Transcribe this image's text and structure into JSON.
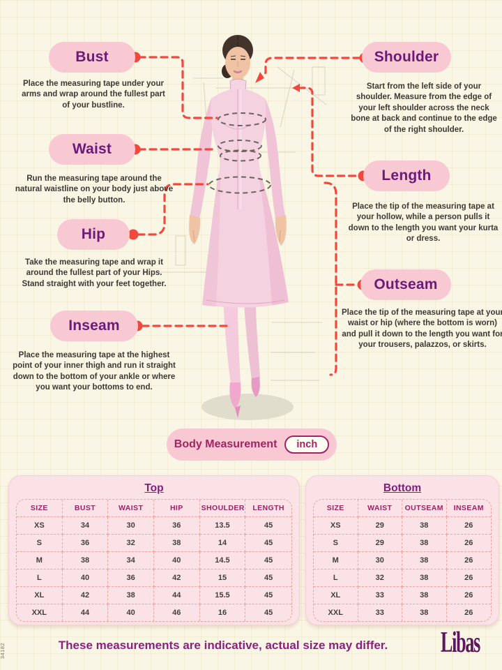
{
  "page": {
    "body_measurement_label": "Body Measurement",
    "unit_label": "inch",
    "footer_note": "These measurements are indicative, actual size may differ.",
    "brand": "Libas",
    "side_code": "34182"
  },
  "colors": {
    "background_cream": "#FAF6E5",
    "pill_pink": "#F8C8D3",
    "card_pink": "#FBE2E6",
    "connector_red": "#F2493E",
    "label_purple": "#6A1B7A",
    "magenta": "#A02463",
    "footer_magenta": "#8E1F82",
    "brand_purple": "#5C165D"
  },
  "callouts": [
    {
      "id": "bust",
      "label": "Bust",
      "description": "Place the measuring tape under your arms and wrap around the fullest part of your bustline."
    },
    {
      "id": "waist",
      "label": "Waist",
      "description": "Run the measuring tape around the natural waistline on your body just above the belly button."
    },
    {
      "id": "hip",
      "label": "Hip",
      "description": "Take the measuring tape and wrap it around the fullest part of your Hips. Stand straight with your feet together."
    },
    {
      "id": "inseam",
      "label": "Inseam",
      "description": "Place the measuring tape at the highest point of your inner thigh and run it straight down to the bottom of your ankle or where you want your bottoms to end."
    },
    {
      "id": "shoulder",
      "label": "Shoulder",
      "description": "Start from the left side of your shoulder. Measure from the edge of your left shoulder across the neck bone at back and continue to the edge of the right shoulder."
    },
    {
      "id": "length",
      "label": "Length",
      "description": "Place the tip of the measuring tape at your hollow, while a person pulls it down to the length you want your kurta or dress."
    },
    {
      "id": "outseam",
      "label": "Outseam",
      "description": "Place the tip of the measuring tape at your waist or hip (where the bottom is worn) and pull it down to the length you want for your trousers, palazzos, or skirts."
    }
  ],
  "tables": {
    "top": {
      "title": "Top",
      "headers": [
        "SIZE",
        "BUST",
        "WAIST",
        "HIP",
        "SHOULDER",
        "LENGTH"
      ],
      "rows": [
        [
          "XS",
          "34",
          "30",
          "36",
          "13.5",
          "45"
        ],
        [
          "S",
          "36",
          "32",
          "38",
          "14",
          "45"
        ],
        [
          "M",
          "38",
          "34",
          "40",
          "14.5",
          "45"
        ],
        [
          "L",
          "40",
          "36",
          "42",
          "15",
          "45"
        ],
        [
          "XL",
          "42",
          "38",
          "44",
          "15.5",
          "45"
        ],
        [
          "XXL",
          "44",
          "40",
          "46",
          "16",
          "45"
        ]
      ]
    },
    "bottom": {
      "title": "Bottom",
      "headers": [
        "SIZE",
        "WAIST",
        "OUTSEAM",
        "INSEAM"
      ],
      "rows": [
        [
          "XS",
          "29",
          "38",
          "26"
        ],
        [
          "S",
          "29",
          "38",
          "26"
        ],
        [
          "M",
          "30",
          "38",
          "26"
        ],
        [
          "L",
          "32",
          "38",
          "26"
        ],
        [
          "XL",
          "33",
          "38",
          "26"
        ],
        [
          "XXL",
          "33",
          "38",
          "26"
        ]
      ]
    }
  }
}
